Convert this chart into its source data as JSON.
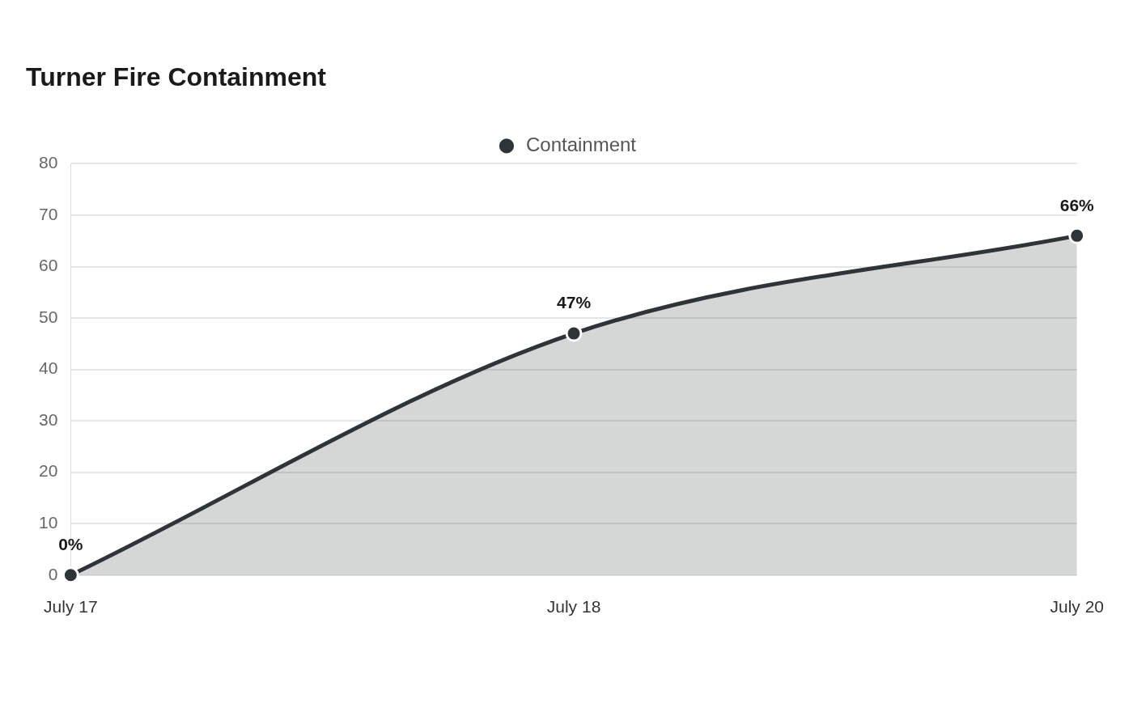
{
  "chart_data": {
    "type": "area",
    "title": "Turner Fire Containment",
    "categories": [
      "July 17",
      "July 18",
      "July 20"
    ],
    "series": [
      {
        "name": "Containment",
        "color": "#2f3537",
        "values": [
          0,
          47,
          66
        ],
        "value_labels": [
          "0%",
          "47%",
          "66%"
        ]
      }
    ],
    "ylim": [
      0,
      80
    ],
    "yticks": [
      0,
      10,
      20,
      30,
      40,
      50,
      60,
      70,
      80
    ],
    "grid": "y",
    "legend": "top",
    "marker": "circle",
    "line_style": "solid"
  }
}
